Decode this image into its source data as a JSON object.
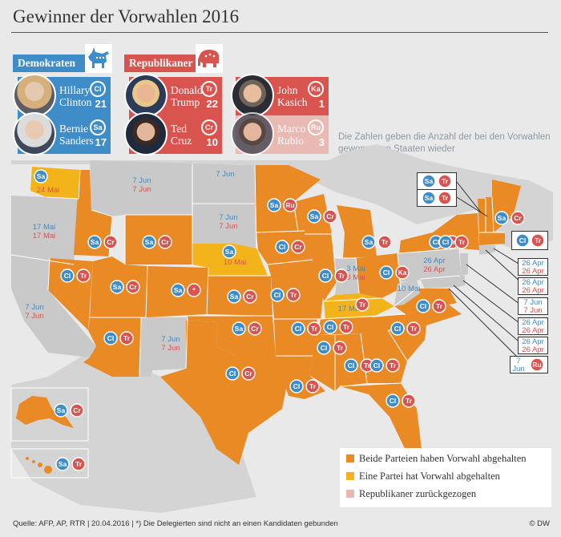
{
  "title": "Gewinner der Vorwahlen 2016",
  "colors": {
    "both_parties": "#e98a24",
    "one_party": "#f2b31b",
    "withdrawn": "#e9b9b3",
    "not_yet": "#c9c9c9",
    "dem_blue": "#3e8cc8",
    "rep_red": "#d9534f"
  },
  "democrats": {
    "label": "Demokraten",
    "logo_icon": "donkey-icon",
    "candidates": [
      {
        "first": "Hillary",
        "last": "Clinton",
        "abbr": "Cl",
        "states": "21"
      },
      {
        "first": "Bernie",
        "last": "Sanders",
        "abbr": "Sa",
        "states": "17"
      }
    ]
  },
  "republicans": {
    "label": "Republikaner",
    "logo_icon": "elephant-icon",
    "candidates": [
      {
        "first": "Donald",
        "last": "Trump",
        "abbr": "Tr",
        "states": "22",
        "withdrawn": false
      },
      {
        "first": "John",
        "last": "Kasich",
        "abbr": "Ka",
        "states": "1",
        "withdrawn": false
      },
      {
        "first": "Ted",
        "last": "Cruz",
        "abbr": "Cr",
        "states": "10",
        "withdrawn": false
      },
      {
        "first": "Marco",
        "last": "Rubio",
        "abbr": "Ru",
        "states": "3",
        "withdrawn": true
      }
    ]
  },
  "note": "Die Zahlen geben die Anzahl der bei den Vorwahlen gewonnenen Staaten wieder",
  "upcoming": {
    "wa": "24 Mai",
    "mt_d": "7 Jun",
    "mt_r": "7 Jun",
    "nd": "7 Jun",
    "sd_d": "7 Jun",
    "sd_r": "7 Jun",
    "ne": "10 Mai",
    "or_d": "17 Mai",
    "or_r": "17 Mai",
    "ca_d": "7 Jun",
    "ca_r": "7 Jun",
    "nm_d": "7 Jun",
    "nm_r": "7 Jun",
    "in_d": "3 Mai",
    "in_r": "3 Mai",
    "ky": "17 Mai",
    "wv": "10 Mai",
    "pa_d": "26 Apr",
    "pa_r": "26 Apr"
  },
  "callouts": {
    "ri": [
      "26 Apr",
      "26 Apr"
    ],
    "ct": [
      "26 Apr",
      "26 Apr"
    ],
    "nj": [
      "7 Jun",
      "7 Jun"
    ],
    "de": [
      "26 Apr",
      "26 Apr"
    ],
    "md": [
      "26 Apr",
      "26 Apr"
    ],
    "dc": [
      "7",
      "Jun"
    ]
  },
  "legend": [
    {
      "label": "Beide Parteien haben Vorwahl abgehalten",
      "color": "#e98a24"
    },
    {
      "label": "Eine Partei hat Vorwahl abgehalten",
      "color": "#f2b31b"
    },
    {
      "label": "Republikaner zurückgezogen",
      "color": "#e9b9b3"
    }
  ],
  "source": "Quelle: AFP, AP, RTR | 20.04.2016 | *) Die Delegierten sind nicht an einen Kandidaten gebunden",
  "copyright": "© DW",
  "winner_markers": [
    {
      "state": "WA",
      "dem": "Sa",
      "rep": ""
    },
    {
      "state": "ID",
      "dem": "Sa",
      "rep": "Cr"
    },
    {
      "state": "UT",
      "dem": "Sa",
      "rep": "Cr"
    },
    {
      "state": "WY",
      "dem": "Sa",
      "rep": "Cr"
    },
    {
      "state": "CO",
      "dem": "Sa",
      "rep": "*"
    },
    {
      "state": "NV",
      "dem": "Cl",
      "rep": "Tr"
    },
    {
      "state": "AZ",
      "dem": "Cl",
      "rep": "Tr"
    },
    {
      "state": "NE",
      "dem": "Sa",
      "rep": ""
    },
    {
      "state": "KS",
      "dem": "Sa",
      "rep": "Cr"
    },
    {
      "state": "OK",
      "dem": "Sa",
      "rep": "Cr"
    },
    {
      "state": "TX",
      "dem": "Cl",
      "rep": "Cr"
    },
    {
      "state": "MN",
      "dem": "Sa",
      "rep": "Ru"
    },
    {
      "state": "WI",
      "dem": "Sa",
      "rep": "Cr"
    },
    {
      "state": "IA",
      "dem": "Cl",
      "rep": "Cr"
    },
    {
      "state": "MO",
      "dem": "Cl",
      "rep": "Tr"
    },
    {
      "state": "AR",
      "dem": "Cl",
      "rep": "Tr"
    },
    {
      "state": "LA",
      "dem": "Cl",
      "rep": "Tr"
    },
    {
      "state": "IL",
      "dem": "Cl",
      "rep": "Tr"
    },
    {
      "state": "MI",
      "dem": "Sa",
      "rep": "Tr"
    },
    {
      "state": "OH",
      "dem": "Cl",
      "rep": "Ka"
    },
    {
      "state": "KY",
      "dem": "",
      "rep": "Tr"
    },
    {
      "state": "TN",
      "dem": "Cl",
      "rep": "Tr"
    },
    {
      "state": "MS",
      "dem": "Cl",
      "rep": "Tr"
    },
    {
      "state": "AL",
      "dem": "Cl",
      "rep": "Tr"
    },
    {
      "state": "GA",
      "dem": "Cl",
      "rep": "Tr"
    },
    {
      "state": "SC",
      "dem": "Cl",
      "rep": "Tr"
    },
    {
      "state": "NC",
      "dem": "Cl",
      "rep": "Tr"
    },
    {
      "state": "VA",
      "dem": "Cl",
      "rep": "Tr"
    },
    {
      "state": "FL",
      "dem": "Cl",
      "rep": "Tr"
    },
    {
      "state": "NY",
      "dem": "Cl",
      "rep": "Tr"
    },
    {
      "state": "ME",
      "dem": "Sa",
      "rep": "Cr"
    },
    {
      "state": "MA",
      "dem": "Cl",
      "rep": "Tr"
    },
    {
      "state": "VT",
      "dem": "Sa",
      "rep": "Tr"
    },
    {
      "state": "NH",
      "dem": "Sa",
      "rep": "Tr"
    },
    {
      "state": "AK",
      "dem": "Sa",
      "rep": "Cr"
    },
    {
      "state": "HI",
      "dem": "Sa",
      "rep": "Tr"
    }
  ]
}
